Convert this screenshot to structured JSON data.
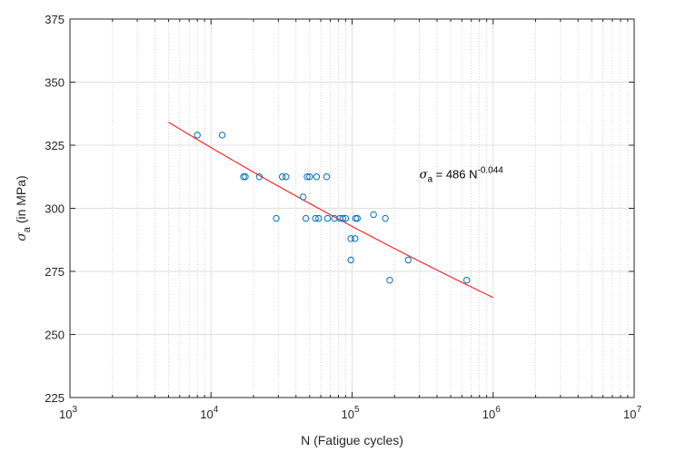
{
  "chart_data": {
    "type": "scatter",
    "xscale": "log",
    "xlim": [
      1000,
      10000000
    ],
    "ylim": [
      225,
      375
    ],
    "xlabel": "N (Fatigue cycles)",
    "ylabel_symbol": "σ",
    "ylabel_sub": "a",
    "ylabel_rest": " (in MPa)",
    "y_ticks": [
      "225",
      "250",
      "275",
      "300",
      "325",
      "350",
      "375"
    ],
    "x_ticks": [
      {
        "value": 1000,
        "base": "10",
        "exp": "3"
      },
      {
        "value": 10000,
        "base": "10",
        "exp": "4"
      },
      {
        "value": 100000,
        "base": "10",
        "exp": "5"
      },
      {
        "value": 1000000,
        "base": "10",
        "exp": "6"
      },
      {
        "value": 10000000,
        "base": "10",
        "exp": "7"
      }
    ],
    "grid": true,
    "marker_color": "#0072BD",
    "fit_color": "#FF0000",
    "points": [
      {
        "x": 8000,
        "y": 329
      },
      {
        "x": 12000,
        "y": 329
      },
      {
        "x": 17000,
        "y": 312.5
      },
      {
        "x": 17500,
        "y": 312.5
      },
      {
        "x": 22000,
        "y": 312.5
      },
      {
        "x": 32000,
        "y": 312.5
      },
      {
        "x": 34000,
        "y": 312.5
      },
      {
        "x": 48000,
        "y": 312.5
      },
      {
        "x": 50000,
        "y": 312.5
      },
      {
        "x": 56000,
        "y": 312.5
      },
      {
        "x": 66000,
        "y": 312.5
      },
      {
        "x": 45000,
        "y": 304.5
      },
      {
        "x": 29000,
        "y": 296
      },
      {
        "x": 47000,
        "y": 296
      },
      {
        "x": 55000,
        "y": 296
      },
      {
        "x": 58000,
        "y": 296
      },
      {
        "x": 67000,
        "y": 296
      },
      {
        "x": 75000,
        "y": 296
      },
      {
        "x": 82000,
        "y": 296
      },
      {
        "x": 86000,
        "y": 296
      },
      {
        "x": 90000,
        "y": 296
      },
      {
        "x": 106000,
        "y": 296
      },
      {
        "x": 109000,
        "y": 296
      },
      {
        "x": 172000,
        "y": 296
      },
      {
        "x": 142000,
        "y": 297.5
      },
      {
        "x": 98000,
        "y": 288
      },
      {
        "x": 105000,
        "y": 288
      },
      {
        "x": 98000,
        "y": 279.5
      },
      {
        "x": 250000,
        "y": 279.5
      },
      {
        "x": 185000,
        "y": 271.5
      },
      {
        "x": 650000,
        "y": 271.5
      }
    ],
    "fit": {
      "coef": 486,
      "exp": -0.044,
      "x_start": 5000,
      "x_end": 1000000
    },
    "annotation": {
      "x": 300000,
      "y": 310,
      "symbol": "σ",
      "sub": "a",
      "text": " = 486 N",
      "sup": "-0.044"
    }
  }
}
